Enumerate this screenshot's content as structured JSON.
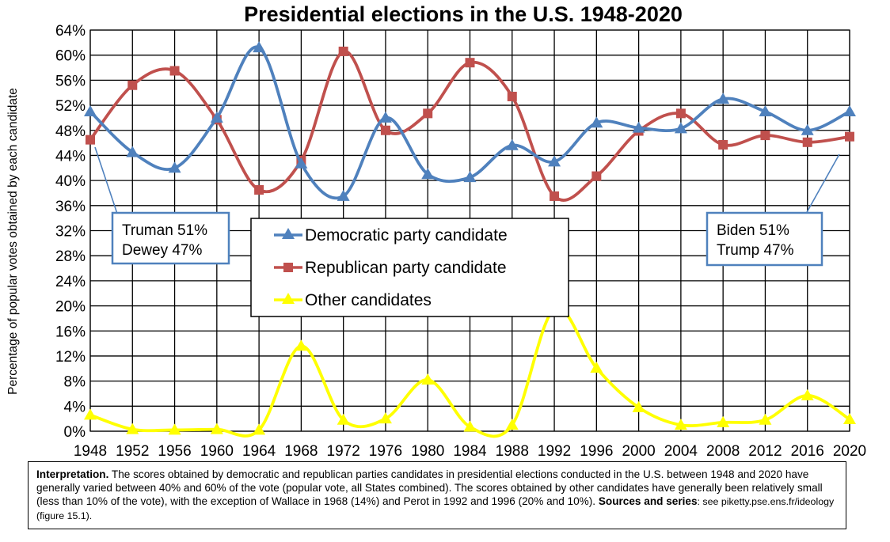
{
  "chart_data": {
    "type": "line",
    "title": "Presidential elections in the U.S. 1948-2020",
    "xlabel": "",
    "ylabel": "Percentage of popular votes obtained by each candidate",
    "categories": [
      "1948",
      "1952",
      "1956",
      "1960",
      "1964",
      "1968",
      "1972",
      "1976",
      "1980",
      "1984",
      "1988",
      "1992",
      "1996",
      "2000",
      "2004",
      "2008",
      "2012",
      "2016",
      "2020"
    ],
    "y_ticks": [
      "0%",
      "4%",
      "8%",
      "12%",
      "16%",
      "20%",
      "24%",
      "28%",
      "32%",
      "36%",
      "40%",
      "44%",
      "48%",
      "52%",
      "56%",
      "60%",
      "64%"
    ],
    "ylim": [
      0,
      64
    ],
    "grid": "on",
    "legend_placement": "center",
    "series": [
      {
        "name": "Democratic party candidate",
        "color": "#4F81BD",
        "marker": "triangle",
        "values": [
          51,
          44.5,
          42,
          50,
          61.2,
          42.7,
          37.5,
          50,
          41,
          40.5,
          45.6,
          43,
          49.2,
          48.4,
          48.3,
          53,
          51,
          48,
          51
        ]
      },
      {
        "name": "Republican party candidate",
        "color": "#C0504D",
        "marker": "square",
        "values": [
          46.5,
          55.2,
          57.5,
          49.7,
          38.5,
          43.2,
          60.6,
          48,
          50.7,
          58.8,
          53.4,
          37.5,
          40.7,
          47.9,
          50.7,
          45.7,
          47.2,
          46.1,
          47
        ]
      },
      {
        "name": "Other candidates",
        "color": "#FFFF00",
        "marker": "triangle",
        "values": [
          2.6,
          0.3,
          0.2,
          0.3,
          0.2,
          13.6,
          1.8,
          2,
          8.2,
          0.7,
          1,
          19.5,
          10.1,
          3.8,
          1,
          1.4,
          1.8,
          5.7,
          1.9
        ]
      }
    ],
    "annotations": [
      {
        "lines": [
          "Truman 51%",
          "Dewey 47%"
        ]
      },
      {
        "lines": [
          "Biden 51%",
          "Trump 47%"
        ]
      }
    ]
  },
  "interpretation": {
    "label": "Interpretation.",
    "text": " The scores obtained by democratic and republican parties candidates in presidential elections conducted in the U.S. between 1948 and 2020 have generally varied between 40% and 60% of the vote (popular vote, all States combined). The scores obtained by other candidates have generally been relatively small (less than 10% of the vote), with the exception of Wallace in 1968 (14%) and Perot in 1992 and 1996 (20% and 10%). ",
    "sources_label": "Sources and series",
    "sources_text": ": see piketty.pse.ens.fr/ideology (figure 15.1)."
  }
}
